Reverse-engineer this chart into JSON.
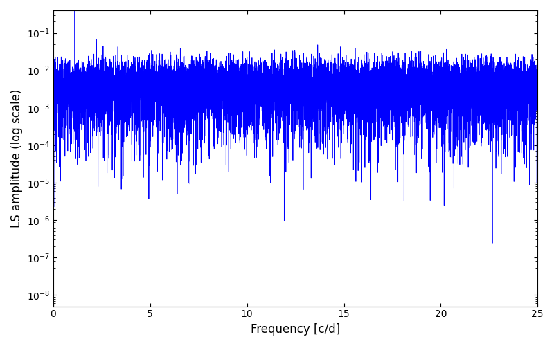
{
  "xlabel": "Frequency [c/d]",
  "ylabel": "LS amplitude (log scale)",
  "xlim": [
    0,
    25
  ],
  "ylim_log": [
    5e-09,
    0.4
  ],
  "line_color": "#0000ff",
  "line_width": 0.6,
  "background_color": "#ffffff",
  "figsize": [
    8.0,
    5.0
  ],
  "dpi": 100,
  "seed": 12345,
  "n_freq": 10000,
  "freq_max": 25.0
}
